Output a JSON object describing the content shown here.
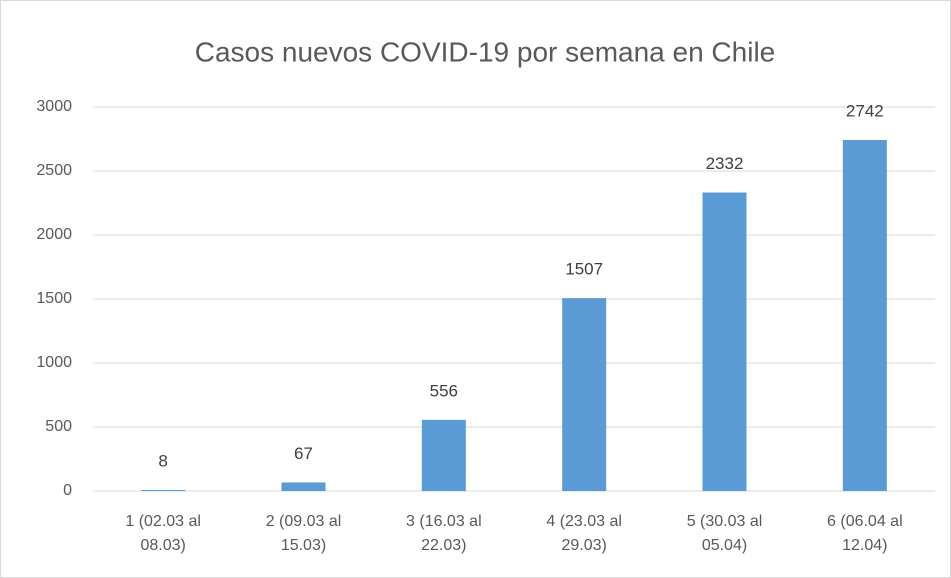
{
  "chart_data": {
    "type": "bar",
    "title": "Casos nuevos COVID-19 por semana en Chile",
    "categories": [
      "1 (02.03 al 08.03)",
      "2 (09.03 al 15.03)",
      "3 (16.03 al 22.03)",
      "4 (23.03 al 29.03)",
      "5 (30.03 al 05.04)",
      "6 (06.04 al 12.04)"
    ],
    "values": [
      8,
      67,
      556,
      1507,
      2332,
      2742
    ],
    "color": "#5b9bd5",
    "ylim": [
      0,
      3000
    ],
    "yticks": [
      0,
      500,
      1000,
      1500,
      2000,
      2500,
      3000
    ],
    "grid": true
  }
}
